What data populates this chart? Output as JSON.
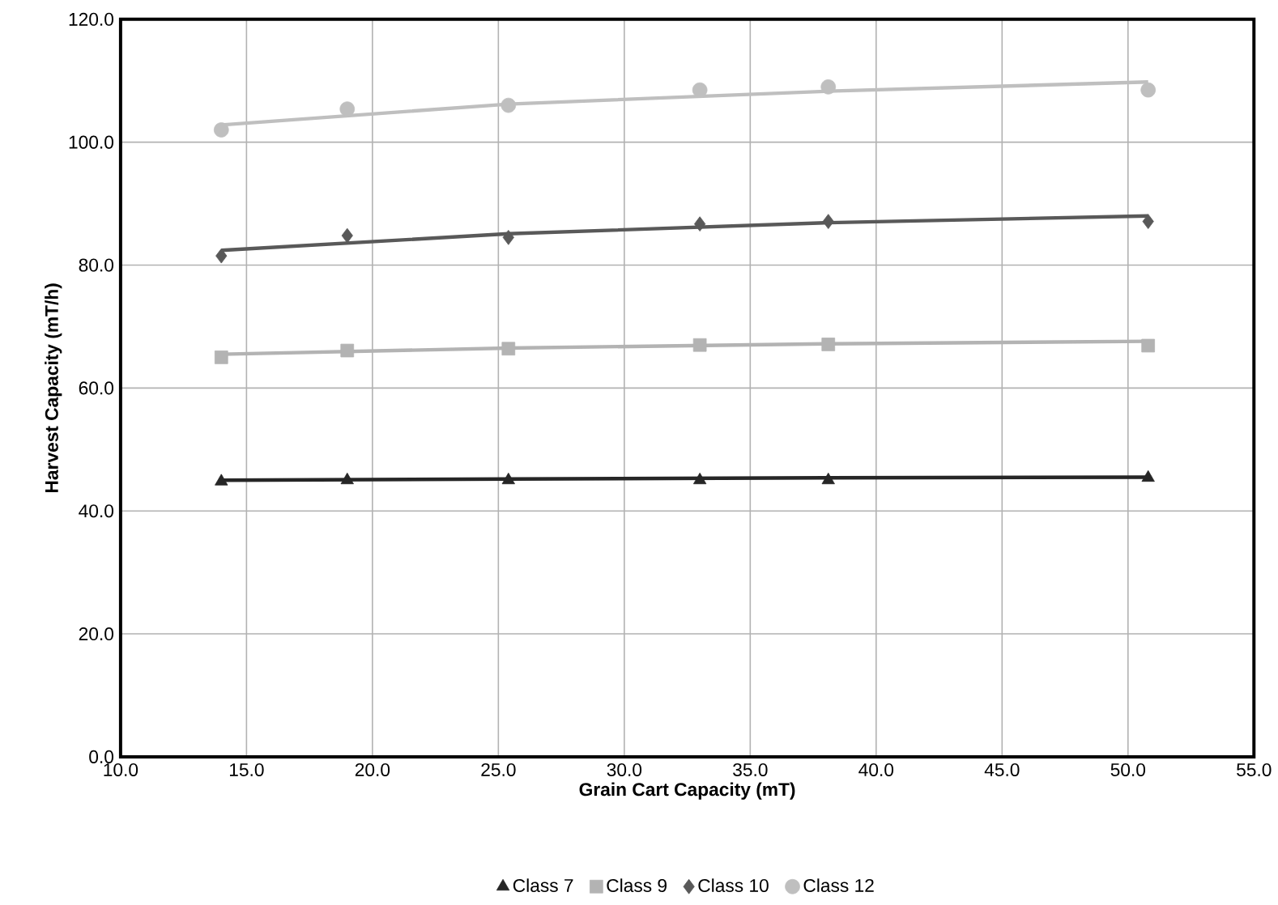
{
  "chart_data": {
    "type": "scatter",
    "xlabel": "Grain Cart Capacity (mT)",
    "ylabel": "Harvest Capacity (mT/h)",
    "xlim": [
      10,
      55
    ],
    "ylim": [
      0,
      120
    ],
    "xticks": [
      {
        "value": 10,
        "label": "10.0"
      },
      {
        "value": 15,
        "label": "15.0"
      },
      {
        "value": 20,
        "label": "20.0"
      },
      {
        "value": 25,
        "label": "25.0"
      },
      {
        "value": 30,
        "label": "30.0"
      },
      {
        "value": 35,
        "label": "35.0"
      },
      {
        "value": 40,
        "label": "40.0"
      },
      {
        "value": 45,
        "label": "45.0"
      },
      {
        "value": 50,
        "label": "50.0"
      },
      {
        "value": 55,
        "label": "55.0"
      }
    ],
    "yticks": [
      {
        "value": 0,
        "label": "0.0"
      },
      {
        "value": 20,
        "label": "20.0"
      },
      {
        "value": 40,
        "label": "40.0"
      },
      {
        "value": 60,
        "label": "60.0"
      },
      {
        "value": 80,
        "label": "80.0"
      },
      {
        "value": 100,
        "label": "100.0"
      },
      {
        "value": 120,
        "label": "120.0"
      }
    ],
    "grid": true,
    "legend": "bottom",
    "series": [
      {
        "type": "line",
        "color": "#262626",
        "marker": "none",
        "x": [
          14.0,
          25.4,
          38.1,
          50.8
        ],
        "values": [
          45.0,
          45.2,
          45.4,
          45.5
        ]
      },
      {
        "type": "line",
        "color": "#b3b3b3",
        "marker": "none",
        "x": [
          14.0,
          25.4,
          38.1,
          50.8
        ],
        "values": [
          65.5,
          66.5,
          67.2,
          67.6
        ]
      },
      {
        "type": "line",
        "color": "#595959",
        "marker": "none",
        "x": [
          14.0,
          25.4,
          38.1,
          50.8
        ],
        "values": [
          82.4,
          85.1,
          86.9,
          88.0
        ]
      },
      {
        "type": "line",
        "color": "#bfbfbf",
        "marker": "none",
        "x": [
          14.0,
          25.4,
          38.1,
          50.8
        ],
        "values": [
          102.8,
          106.2,
          108.3,
          109.8
        ]
      },
      {
        "name": "Class 7",
        "color": "#262626",
        "marker": "triangle",
        "x": [
          14.0,
          19.0,
          25.4,
          33.0,
          38.1,
          50.8
        ],
        "values": [
          44.8,
          45.0,
          45.0,
          45.0,
          45.0,
          45.4
        ]
      },
      {
        "name": "Class 9",
        "color": "#b3b3b3",
        "marker": "square",
        "x": [
          14.0,
          19.0,
          25.4,
          33.0,
          38.1,
          50.8
        ],
        "values": [
          65.0,
          66.1,
          66.4,
          67.0,
          67.1,
          66.9
        ]
      },
      {
        "name": "Class 10",
        "color": "#595959",
        "marker": "diamond",
        "x": [
          14.0,
          19.0,
          25.4,
          33.0,
          38.1,
          50.8
        ],
        "values": [
          81.5,
          84.8,
          84.5,
          86.7,
          87.1,
          87.1
        ]
      },
      {
        "name": "Class 12",
        "color": "#bfbfbf",
        "marker": "circle",
        "x": [
          14.0,
          19.0,
          25.4,
          33.0,
          38.1,
          50.8
        ],
        "values": [
          102.0,
          105.4,
          106.0,
          108.5,
          109.0,
          108.5
        ]
      }
    ]
  }
}
